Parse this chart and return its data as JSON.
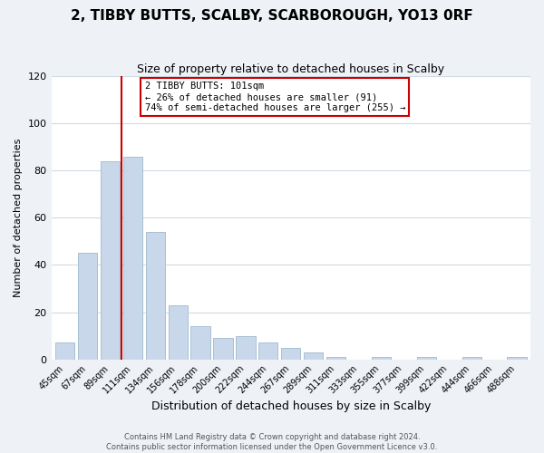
{
  "title": "2, TIBBY BUTTS, SCALBY, SCARBOROUGH, YO13 0RF",
  "subtitle": "Size of property relative to detached houses in Scalby",
  "xlabel": "Distribution of detached houses by size in Scalby",
  "ylabel": "Number of detached properties",
  "bar_labels": [
    "45sqm",
    "67sqm",
    "89sqm",
    "111sqm",
    "134sqm",
    "156sqm",
    "178sqm",
    "200sqm",
    "222sqm",
    "244sqm",
    "267sqm",
    "289sqm",
    "311sqm",
    "333sqm",
    "355sqm",
    "377sqm",
    "399sqm",
    "422sqm",
    "444sqm",
    "466sqm",
    "488sqm"
  ],
  "bar_values": [
    7,
    45,
    84,
    86,
    54,
    23,
    14,
    9,
    10,
    7,
    5,
    3,
    1,
    0,
    1,
    0,
    1,
    0,
    1,
    0,
    1
  ],
  "bar_color": "#c8d8ea",
  "bar_edge_color": "#a8c0d4",
  "ylim": [
    0,
    120
  ],
  "yticks": [
    0,
    20,
    40,
    60,
    80,
    100,
    120
  ],
  "marker_line_color": "#cc0000",
  "annotation_line1": "2 TIBBY BUTTS: 101sqm",
  "annotation_line2": "← 26% of detached houses are smaller (91)",
  "annotation_line3": "74% of semi-detached houses are larger (255) →",
  "annotation_box_edge_color": "#cc0000",
  "footer1": "Contains HM Land Registry data © Crown copyright and database right 2024.",
  "footer2": "Contains public sector information licensed under the Open Government Licence v3.0.",
  "background_color": "#eef2f7",
  "plot_background_color": "#ffffff",
  "grid_color": "#d0dae4",
  "title_fontsize": 11,
  "subtitle_fontsize": 9,
  "xlabel_fontsize": 9,
  "ylabel_fontsize": 8,
  "tick_fontsize": 7,
  "footer_fontsize": 6
}
